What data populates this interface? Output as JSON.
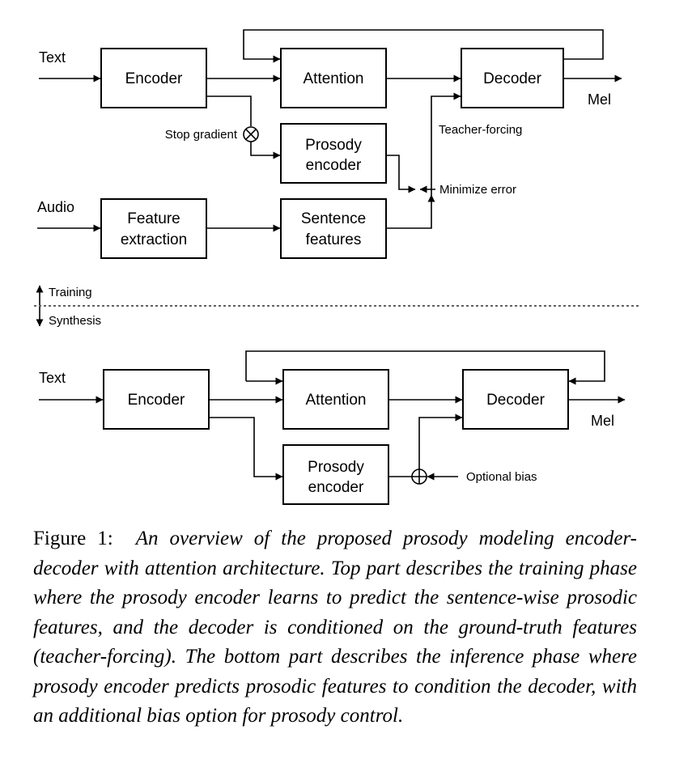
{
  "training": {
    "input_text": "Text",
    "input_audio": "Audio",
    "encoder": "Encoder",
    "attention": "Attention",
    "decoder": "Decoder",
    "output_mel": "Mel",
    "prosody_encoder": [
      "Prosody",
      "encoder"
    ],
    "feature_extraction": [
      "Feature",
      "extraction"
    ],
    "sentence_features": [
      "Sentence",
      "features"
    ],
    "stop_gradient": "Stop gradient",
    "teacher_forcing": "Teacher-forcing",
    "minimize_error": "Minimize error"
  },
  "phase_marker": {
    "upper": "Training",
    "lower": "Synthesis"
  },
  "synthesis": {
    "input_text": "Text",
    "encoder": "Encoder",
    "attention": "Attention",
    "decoder": "Decoder",
    "output_mel": "Mel",
    "prosody_encoder": [
      "Prosody",
      "encoder"
    ],
    "optional_bias": "Optional bias"
  },
  "caption": {
    "lead": "Figure 1:",
    "body": "An overview of the proposed prosody modeling encoder-decoder with attention architecture. Top part describes the training phase where the prosody encoder learns to predict the sentence-wise prosodic features, and the decoder is conditioned on the ground-truth features (teacher-forcing). The bottom part describes the inference phase where prosody encoder predicts prosodic features to condition the decoder, with an additional bias option for prosody control."
  }
}
